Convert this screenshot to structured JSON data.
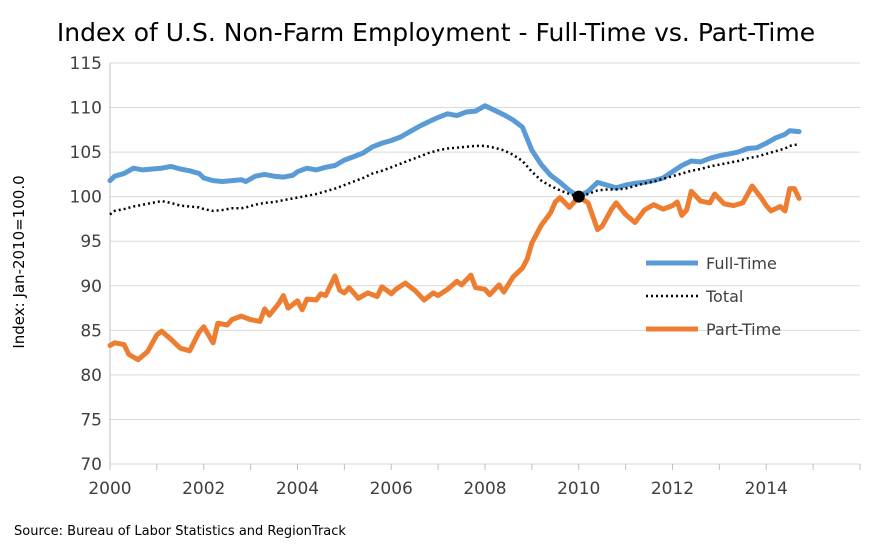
{
  "chart_data": {
    "type": "line",
    "title": "Index of U.S. Non-Farm Employment - Full-Time vs. Part-Time",
    "ylabel": "Index: Jan-2010=100.0",
    "xlabel": "",
    "source": "Source: Bureau of Labor Statistics and RegionTrack",
    "xlim": [
      2000,
      2016
    ],
    "ylim": [
      70,
      115
    ],
    "x_ticks": [
      "2000",
      "2002",
      "2004",
      "2006",
      "2008",
      "2010",
      "2012",
      "2014"
    ],
    "y_ticks": [
      "70",
      "75",
      "80",
      "85",
      "90",
      "95",
      "100",
      "105",
      "110",
      "115"
    ],
    "grid": "horizontal",
    "legend_position": "right",
    "reference_point": {
      "x": 2010.0,
      "y": 100.0
    },
    "colors": {
      "full_time": "#5B9BD5",
      "total": "#000000",
      "part_time": "#ED7D31",
      "grid": "#D9D9D9",
      "axis": "#BFBFBF"
    },
    "series": [
      {
        "name": "Full-Time",
        "style": "solid",
        "points": [
          [
            2000.0,
            101.8
          ],
          [
            2000.1,
            102.3
          ],
          [
            2000.3,
            102.6
          ],
          [
            2000.5,
            103.2
          ],
          [
            2000.7,
            103.0
          ],
          [
            2000.9,
            103.1
          ],
          [
            2001.1,
            103.2
          ],
          [
            2001.3,
            103.4
          ],
          [
            2001.5,
            103.1
          ],
          [
            2001.7,
            102.9
          ],
          [
            2001.9,
            102.6
          ],
          [
            2002.0,
            102.1
          ],
          [
            2002.2,
            101.8
          ],
          [
            2002.4,
            101.7
          ],
          [
            2002.6,
            101.8
          ],
          [
            2002.8,
            101.9
          ],
          [
            2002.9,
            101.7
          ],
          [
            2003.1,
            102.3
          ],
          [
            2003.3,
            102.5
          ],
          [
            2003.5,
            102.3
          ],
          [
            2003.7,
            102.2
          ],
          [
            2003.9,
            102.4
          ],
          [
            2004.0,
            102.8
          ],
          [
            2004.2,
            103.2
          ],
          [
            2004.4,
            103.0
          ],
          [
            2004.6,
            103.3
          ],
          [
            2004.8,
            103.5
          ],
          [
            2005.0,
            104.1
          ],
          [
            2005.2,
            104.5
          ],
          [
            2005.4,
            104.9
          ],
          [
            2005.6,
            105.6
          ],
          [
            2005.8,
            106.0
          ],
          [
            2006.0,
            106.3
          ],
          [
            2006.2,
            106.7
          ],
          [
            2006.4,
            107.3
          ],
          [
            2006.6,
            107.9
          ],
          [
            2006.8,
            108.4
          ],
          [
            2007.0,
            108.9
          ],
          [
            2007.2,
            109.3
          ],
          [
            2007.4,
            109.1
          ],
          [
            2007.6,
            109.5
          ],
          [
            2007.8,
            109.6
          ],
          [
            2008.0,
            110.2
          ],
          [
            2008.2,
            109.7
          ],
          [
            2008.4,
            109.2
          ],
          [
            2008.6,
            108.6
          ],
          [
            2008.8,
            107.8
          ],
          [
            2009.0,
            105.2
          ],
          [
            2009.2,
            103.6
          ],
          [
            2009.4,
            102.4
          ],
          [
            2009.6,
            101.6
          ],
          [
            2009.8,
            100.7
          ],
          [
            2010.0,
            100.0
          ],
          [
            2010.2,
            100.6
          ],
          [
            2010.4,
            101.6
          ],
          [
            2010.6,
            101.3
          ],
          [
            2010.8,
            101.0
          ],
          [
            2011.0,
            101.3
          ],
          [
            2011.2,
            101.5
          ],
          [
            2011.4,
            101.6
          ],
          [
            2011.6,
            101.8
          ],
          [
            2011.8,
            102.1
          ],
          [
            2012.0,
            102.8
          ],
          [
            2012.2,
            103.5
          ],
          [
            2012.4,
            104.0
          ],
          [
            2012.6,
            103.9
          ],
          [
            2012.8,
            104.3
          ],
          [
            2013.0,
            104.6
          ],
          [
            2013.2,
            104.8
          ],
          [
            2013.4,
            105.0
          ],
          [
            2013.6,
            105.4
          ],
          [
            2013.8,
            105.5
          ],
          [
            2014.0,
            106.0
          ],
          [
            2014.2,
            106.6
          ],
          [
            2014.4,
            107.0
          ],
          [
            2014.5,
            107.4
          ],
          [
            2014.7,
            107.3
          ]
        ]
      },
      {
        "name": "Total",
        "style": "dotted",
        "points": [
          [
            2000.0,
            98.0
          ],
          [
            2000.1,
            98.4
          ],
          [
            2000.3,
            98.6
          ],
          [
            2000.5,
            98.9
          ],
          [
            2000.7,
            99.1
          ],
          [
            2000.9,
            99.3
          ],
          [
            2001.1,
            99.5
          ],
          [
            2001.3,
            99.3
          ],
          [
            2001.5,
            99.0
          ],
          [
            2001.7,
            98.9
          ],
          [
            2001.9,
            98.8
          ],
          [
            2002.0,
            98.6
          ],
          [
            2002.2,
            98.4
          ],
          [
            2002.4,
            98.5
          ],
          [
            2002.6,
            98.7
          ],
          [
            2002.8,
            98.7
          ],
          [
            2002.9,
            98.8
          ],
          [
            2003.1,
            99.1
          ],
          [
            2003.3,
            99.3
          ],
          [
            2003.5,
            99.4
          ],
          [
            2003.7,
            99.6
          ],
          [
            2003.9,
            99.8
          ],
          [
            2004.0,
            99.9
          ],
          [
            2004.2,
            100.1
          ],
          [
            2004.4,
            100.3
          ],
          [
            2004.6,
            100.6
          ],
          [
            2004.8,
            100.9
          ],
          [
            2005.0,
            101.3
          ],
          [
            2005.2,
            101.7
          ],
          [
            2005.4,
            102.1
          ],
          [
            2005.6,
            102.6
          ],
          [
            2005.8,
            102.9
          ],
          [
            2006.0,
            103.3
          ],
          [
            2006.2,
            103.7
          ],
          [
            2006.4,
            104.1
          ],
          [
            2006.6,
            104.5
          ],
          [
            2006.8,
            104.9
          ],
          [
            2007.0,
            105.2
          ],
          [
            2007.2,
            105.4
          ],
          [
            2007.4,
            105.5
          ],
          [
            2007.6,
            105.6
          ],
          [
            2007.8,
            105.7
          ],
          [
            2008.0,
            105.7
          ],
          [
            2008.2,
            105.5
          ],
          [
            2008.4,
            105.2
          ],
          [
            2008.6,
            104.7
          ],
          [
            2008.8,
            104.0
          ],
          [
            2009.0,
            102.8
          ],
          [
            2009.2,
            101.8
          ],
          [
            2009.4,
            101.2
          ],
          [
            2009.6,
            100.7
          ],
          [
            2009.8,
            100.3
          ],
          [
            2010.0,
            100.0
          ],
          [
            2010.2,
            100.3
          ],
          [
            2010.4,
            100.7
          ],
          [
            2010.6,
            100.8
          ],
          [
            2010.8,
            100.8
          ],
          [
            2011.0,
            100.9
          ],
          [
            2011.2,
            101.2
          ],
          [
            2011.4,
            101.5
          ],
          [
            2011.6,
            101.7
          ],
          [
            2011.8,
            102.0
          ],
          [
            2012.0,
            102.3
          ],
          [
            2012.2,
            102.6
          ],
          [
            2012.4,
            102.9
          ],
          [
            2012.6,
            103.1
          ],
          [
            2012.8,
            103.4
          ],
          [
            2013.0,
            103.6
          ],
          [
            2013.2,
            103.8
          ],
          [
            2013.4,
            104.0
          ],
          [
            2013.6,
            104.3
          ],
          [
            2013.8,
            104.5
          ],
          [
            2014.0,
            104.8
          ],
          [
            2014.2,
            105.1
          ],
          [
            2014.4,
            105.4
          ],
          [
            2014.5,
            105.7
          ],
          [
            2014.7,
            105.9
          ]
        ]
      },
      {
        "name": "Part-Time",
        "style": "solid",
        "points": [
          [
            2000.0,
            83.3
          ],
          [
            2000.1,
            83.6
          ],
          [
            2000.3,
            83.4
          ],
          [
            2000.4,
            82.3
          ],
          [
            2000.5,
            82.0
          ],
          [
            2000.6,
            81.7
          ],
          [
            2000.8,
            82.6
          ],
          [
            2001.0,
            84.5
          ],
          [
            2001.1,
            84.9
          ],
          [
            2001.3,
            84.0
          ],
          [
            2001.5,
            83.0
          ],
          [
            2001.7,
            82.7
          ],
          [
            2001.9,
            84.8
          ],
          [
            2002.0,
            85.4
          ],
          [
            2002.1,
            84.5
          ],
          [
            2002.2,
            83.6
          ],
          [
            2002.3,
            85.8
          ],
          [
            2002.5,
            85.6
          ],
          [
            2002.6,
            86.2
          ],
          [
            2002.8,
            86.6
          ],
          [
            2003.0,
            86.2
          ],
          [
            2003.2,
            86.0
          ],
          [
            2003.3,
            87.4
          ],
          [
            2003.4,
            86.7
          ],
          [
            2003.6,
            88.0
          ],
          [
            2003.7,
            88.9
          ],
          [
            2003.8,
            87.5
          ],
          [
            2004.0,
            88.3
          ],
          [
            2004.1,
            87.3
          ],
          [
            2004.2,
            88.5
          ],
          [
            2004.4,
            88.4
          ],
          [
            2004.5,
            89.1
          ],
          [
            2004.6,
            88.9
          ],
          [
            2004.8,
            91.1
          ],
          [
            2004.9,
            89.5
          ],
          [
            2005.0,
            89.2
          ],
          [
            2005.1,
            89.8
          ],
          [
            2005.3,
            88.6
          ],
          [
            2005.4,
            88.9
          ],
          [
            2005.5,
            89.2
          ],
          [
            2005.7,
            88.8
          ],
          [
            2005.8,
            89.9
          ],
          [
            2006.0,
            89.1
          ],
          [
            2006.1,
            89.6
          ],
          [
            2006.3,
            90.3
          ],
          [
            2006.5,
            89.5
          ],
          [
            2006.7,
            88.4
          ],
          [
            2006.9,
            89.2
          ],
          [
            2007.0,
            88.9
          ],
          [
            2007.2,
            89.6
          ],
          [
            2007.4,
            90.5
          ],
          [
            2007.5,
            90.1
          ],
          [
            2007.7,
            91.2
          ],
          [
            2007.8,
            89.8
          ],
          [
            2008.0,
            89.6
          ],
          [
            2008.1,
            89.0
          ],
          [
            2008.3,
            90.1
          ],
          [
            2008.4,
            89.3
          ],
          [
            2008.6,
            91.0
          ],
          [
            2008.8,
            92.0
          ],
          [
            2008.9,
            93.0
          ],
          [
            2009.0,
            94.8
          ],
          [
            2009.2,
            96.8
          ],
          [
            2009.4,
            98.2
          ],
          [
            2009.5,
            99.4
          ],
          [
            2009.6,
            99.9
          ],
          [
            2009.8,
            98.8
          ],
          [
            2010.0,
            100.0
          ],
          [
            2010.2,
            99.3
          ],
          [
            2010.4,
            96.3
          ],
          [
            2010.5,
            96.7
          ],
          [
            2010.7,
            98.6
          ],
          [
            2010.8,
            99.3
          ],
          [
            2011.0,
            98.0
          ],
          [
            2011.2,
            97.1
          ],
          [
            2011.4,
            98.5
          ],
          [
            2011.6,
            99.1
          ],
          [
            2011.8,
            98.6
          ],
          [
            2012.0,
            99.0
          ],
          [
            2012.1,
            99.4
          ],
          [
            2012.2,
            97.9
          ],
          [
            2012.3,
            98.5
          ],
          [
            2012.4,
            100.6
          ],
          [
            2012.6,
            99.5
          ],
          [
            2012.8,
            99.3
          ],
          [
            2012.9,
            100.3
          ],
          [
            2013.1,
            99.2
          ],
          [
            2013.3,
            99.0
          ],
          [
            2013.5,
            99.3
          ],
          [
            2013.7,
            101.2
          ],
          [
            2013.9,
            99.8
          ],
          [
            2014.0,
            99.0
          ],
          [
            2014.1,
            98.4
          ],
          [
            2014.3,
            98.9
          ],
          [
            2014.4,
            98.4
          ],
          [
            2014.5,
            100.9
          ],
          [
            2014.6,
            100.9
          ],
          [
            2014.7,
            99.8
          ]
        ]
      }
    ]
  }
}
